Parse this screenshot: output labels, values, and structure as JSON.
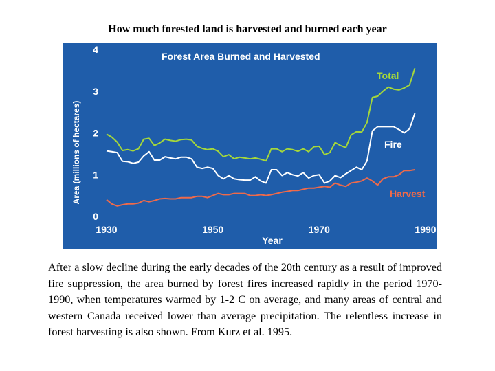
{
  "page": {
    "title": "How much forested land is harvested and burned each year",
    "caption": "After a slow decline during the early decades of the 20th century as a result of improved fire suppression, the area burned by forest fires increased rapidly in the period 1970-1990, when temperatures warmed by 1-2 C on average, and many areas of central and western Canada received lower than average precipitation. The relentless increase in forest harvesting is also shown. From Kurz et al. 1995."
  },
  "chart_data": {
    "type": "line",
    "title": "Forest Area Burned and Harvested",
    "xlabel": "Year",
    "ylabel": "Area (millions of hectares)",
    "xlim": [
      1930,
      1990
    ],
    "ylim": [
      0,
      4
    ],
    "x_ticks": [
      "1930",
      "1950",
      "1970",
      "1990"
    ],
    "y_ticks": [
      "0",
      "1",
      "2",
      "3",
      "4"
    ],
    "grid": false,
    "background_color": "#1f5daa",
    "series": [
      {
        "name": "Total",
        "color": "#a6d83a",
        "label_color": "#a6d83a",
        "points": [
          [
            1930,
            1.97
          ],
          [
            1931,
            1.9
          ],
          [
            1932,
            1.78
          ],
          [
            1933,
            1.58
          ],
          [
            1934,
            1.6
          ],
          [
            1935,
            1.57
          ],
          [
            1936,
            1.62
          ],
          [
            1937,
            1.85
          ],
          [
            1938,
            1.87
          ],
          [
            1939,
            1.7
          ],
          [
            1940,
            1.76
          ],
          [
            1941,
            1.85
          ],
          [
            1942,
            1.82
          ],
          [
            1943,
            1.8
          ],
          [
            1944,
            1.84
          ],
          [
            1945,
            1.85
          ],
          [
            1946,
            1.83
          ],
          [
            1947,
            1.68
          ],
          [
            1948,
            1.63
          ],
          [
            1949,
            1.6
          ],
          [
            1950,
            1.62
          ],
          [
            1951,
            1.56
          ],
          [
            1952,
            1.43
          ],
          [
            1953,
            1.48
          ],
          [
            1954,
            1.38
          ],
          [
            1955,
            1.42
          ],
          [
            1956,
            1.4
          ],
          [
            1957,
            1.38
          ],
          [
            1958,
            1.4
          ],
          [
            1959,
            1.37
          ],
          [
            1960,
            1.33
          ],
          [
            1961,
            1.62
          ],
          [
            1962,
            1.62
          ],
          [
            1963,
            1.55
          ],
          [
            1964,
            1.62
          ],
          [
            1965,
            1.6
          ],
          [
            1966,
            1.56
          ],
          [
            1967,
            1.62
          ],
          [
            1968,
            1.55
          ],
          [
            1969,
            1.67
          ],
          [
            1970,
            1.68
          ],
          [
            1971,
            1.48
          ],
          [
            1972,
            1.53
          ],
          [
            1973,
            1.77
          ],
          [
            1974,
            1.7
          ],
          [
            1975,
            1.65
          ],
          [
            1976,
            1.95
          ],
          [
            1977,
            2.03
          ],
          [
            1978,
            2.02
          ],
          [
            1979,
            2.25
          ],
          [
            1980,
            2.85
          ],
          [
            1981,
            2.88
          ],
          [
            1982,
            3.0
          ],
          [
            1983,
            3.1
          ],
          [
            1984,
            3.05
          ],
          [
            1985,
            3.03
          ],
          [
            1986,
            3.08
          ],
          [
            1987,
            3.15
          ],
          [
            1988,
            3.55
          ]
        ]
      },
      {
        "name": "Fire",
        "color": "#ffffff",
        "label_color": "#ffffff",
        "points": [
          [
            1930,
            1.57
          ],
          [
            1931,
            1.55
          ],
          [
            1932,
            1.53
          ],
          [
            1933,
            1.32
          ],
          [
            1934,
            1.31
          ],
          [
            1935,
            1.27
          ],
          [
            1936,
            1.3
          ],
          [
            1937,
            1.45
          ],
          [
            1938,
            1.55
          ],
          [
            1939,
            1.35
          ],
          [
            1940,
            1.35
          ],
          [
            1941,
            1.43
          ],
          [
            1942,
            1.4
          ],
          [
            1943,
            1.38
          ],
          [
            1944,
            1.42
          ],
          [
            1945,
            1.42
          ],
          [
            1946,
            1.38
          ],
          [
            1947,
            1.18
          ],
          [
            1948,
            1.15
          ],
          [
            1949,
            1.18
          ],
          [
            1950,
            1.15
          ],
          [
            1951,
            0.98
          ],
          [
            1952,
            0.9
          ],
          [
            1953,
            0.98
          ],
          [
            1954,
            0.9
          ],
          [
            1955,
            0.88
          ],
          [
            1956,
            0.87
          ],
          [
            1957,
            0.87
          ],
          [
            1958,
            0.95
          ],
          [
            1959,
            0.85
          ],
          [
            1960,
            0.8
          ],
          [
            1961,
            1.12
          ],
          [
            1962,
            1.12
          ],
          [
            1963,
            0.98
          ],
          [
            1964,
            1.05
          ],
          [
            1965,
            1.0
          ],
          [
            1966,
            0.97
          ],
          [
            1967,
            1.05
          ],
          [
            1968,
            0.92
          ],
          [
            1969,
            0.98
          ],
          [
            1970,
            1.0
          ],
          [
            1971,
            0.8
          ],
          [
            1972,
            0.85
          ],
          [
            1973,
            0.98
          ],
          [
            1974,
            0.93
          ],
          [
            1975,
            1.02
          ],
          [
            1976,
            1.1
          ],
          [
            1977,
            1.18
          ],
          [
            1978,
            1.12
          ],
          [
            1979,
            1.33
          ],
          [
            1980,
            2.05
          ],
          [
            1981,
            2.15
          ],
          [
            1982,
            2.15
          ],
          [
            1983,
            2.15
          ],
          [
            1984,
            2.15
          ],
          [
            1985,
            2.08
          ],
          [
            1986,
            2.0
          ],
          [
            1987,
            2.1
          ],
          [
            1988,
            2.47
          ]
        ]
      },
      {
        "name": "Harvest",
        "color": "#ef6a4a",
        "label_color": "#ef6a4a",
        "points": [
          [
            1930,
            0.4
          ],
          [
            1931,
            0.3
          ],
          [
            1932,
            0.25
          ],
          [
            1933,
            0.28
          ],
          [
            1934,
            0.3
          ],
          [
            1935,
            0.3
          ],
          [
            1936,
            0.32
          ],
          [
            1937,
            0.38
          ],
          [
            1938,
            0.35
          ],
          [
            1939,
            0.38
          ],
          [
            1940,
            0.42
          ],
          [
            1941,
            0.43
          ],
          [
            1942,
            0.42
          ],
          [
            1943,
            0.42
          ],
          [
            1944,
            0.45
          ],
          [
            1945,
            0.45
          ],
          [
            1946,
            0.45
          ],
          [
            1947,
            0.48
          ],
          [
            1948,
            0.48
          ],
          [
            1949,
            0.45
          ],
          [
            1950,
            0.5
          ],
          [
            1951,
            0.55
          ],
          [
            1952,
            0.52
          ],
          [
            1953,
            0.52
          ],
          [
            1954,
            0.55
          ],
          [
            1955,
            0.55
          ],
          [
            1956,
            0.55
          ],
          [
            1957,
            0.5
          ],
          [
            1958,
            0.5
          ],
          [
            1959,
            0.52
          ],
          [
            1960,
            0.5
          ],
          [
            1961,
            0.52
          ],
          [
            1962,
            0.55
          ],
          [
            1963,
            0.58
          ],
          [
            1964,
            0.6
          ],
          [
            1965,
            0.62
          ],
          [
            1966,
            0.62
          ],
          [
            1967,
            0.65
          ],
          [
            1968,
            0.68
          ],
          [
            1969,
            0.68
          ],
          [
            1970,
            0.7
          ],
          [
            1971,
            0.72
          ],
          [
            1972,
            0.7
          ],
          [
            1973,
            0.8
          ],
          [
            1974,
            0.75
          ],
          [
            1975,
            0.72
          ],
          [
            1976,
            0.8
          ],
          [
            1977,
            0.82
          ],
          [
            1978,
            0.85
          ],
          [
            1979,
            0.92
          ],
          [
            1980,
            0.85
          ],
          [
            1981,
            0.75
          ],
          [
            1982,
            0.9
          ],
          [
            1983,
            0.95
          ],
          [
            1984,
            0.95
          ],
          [
            1985,
            1.0
          ],
          [
            1986,
            1.1
          ],
          [
            1987,
            1.1
          ],
          [
            1988,
            1.12
          ]
        ]
      }
    ]
  }
}
